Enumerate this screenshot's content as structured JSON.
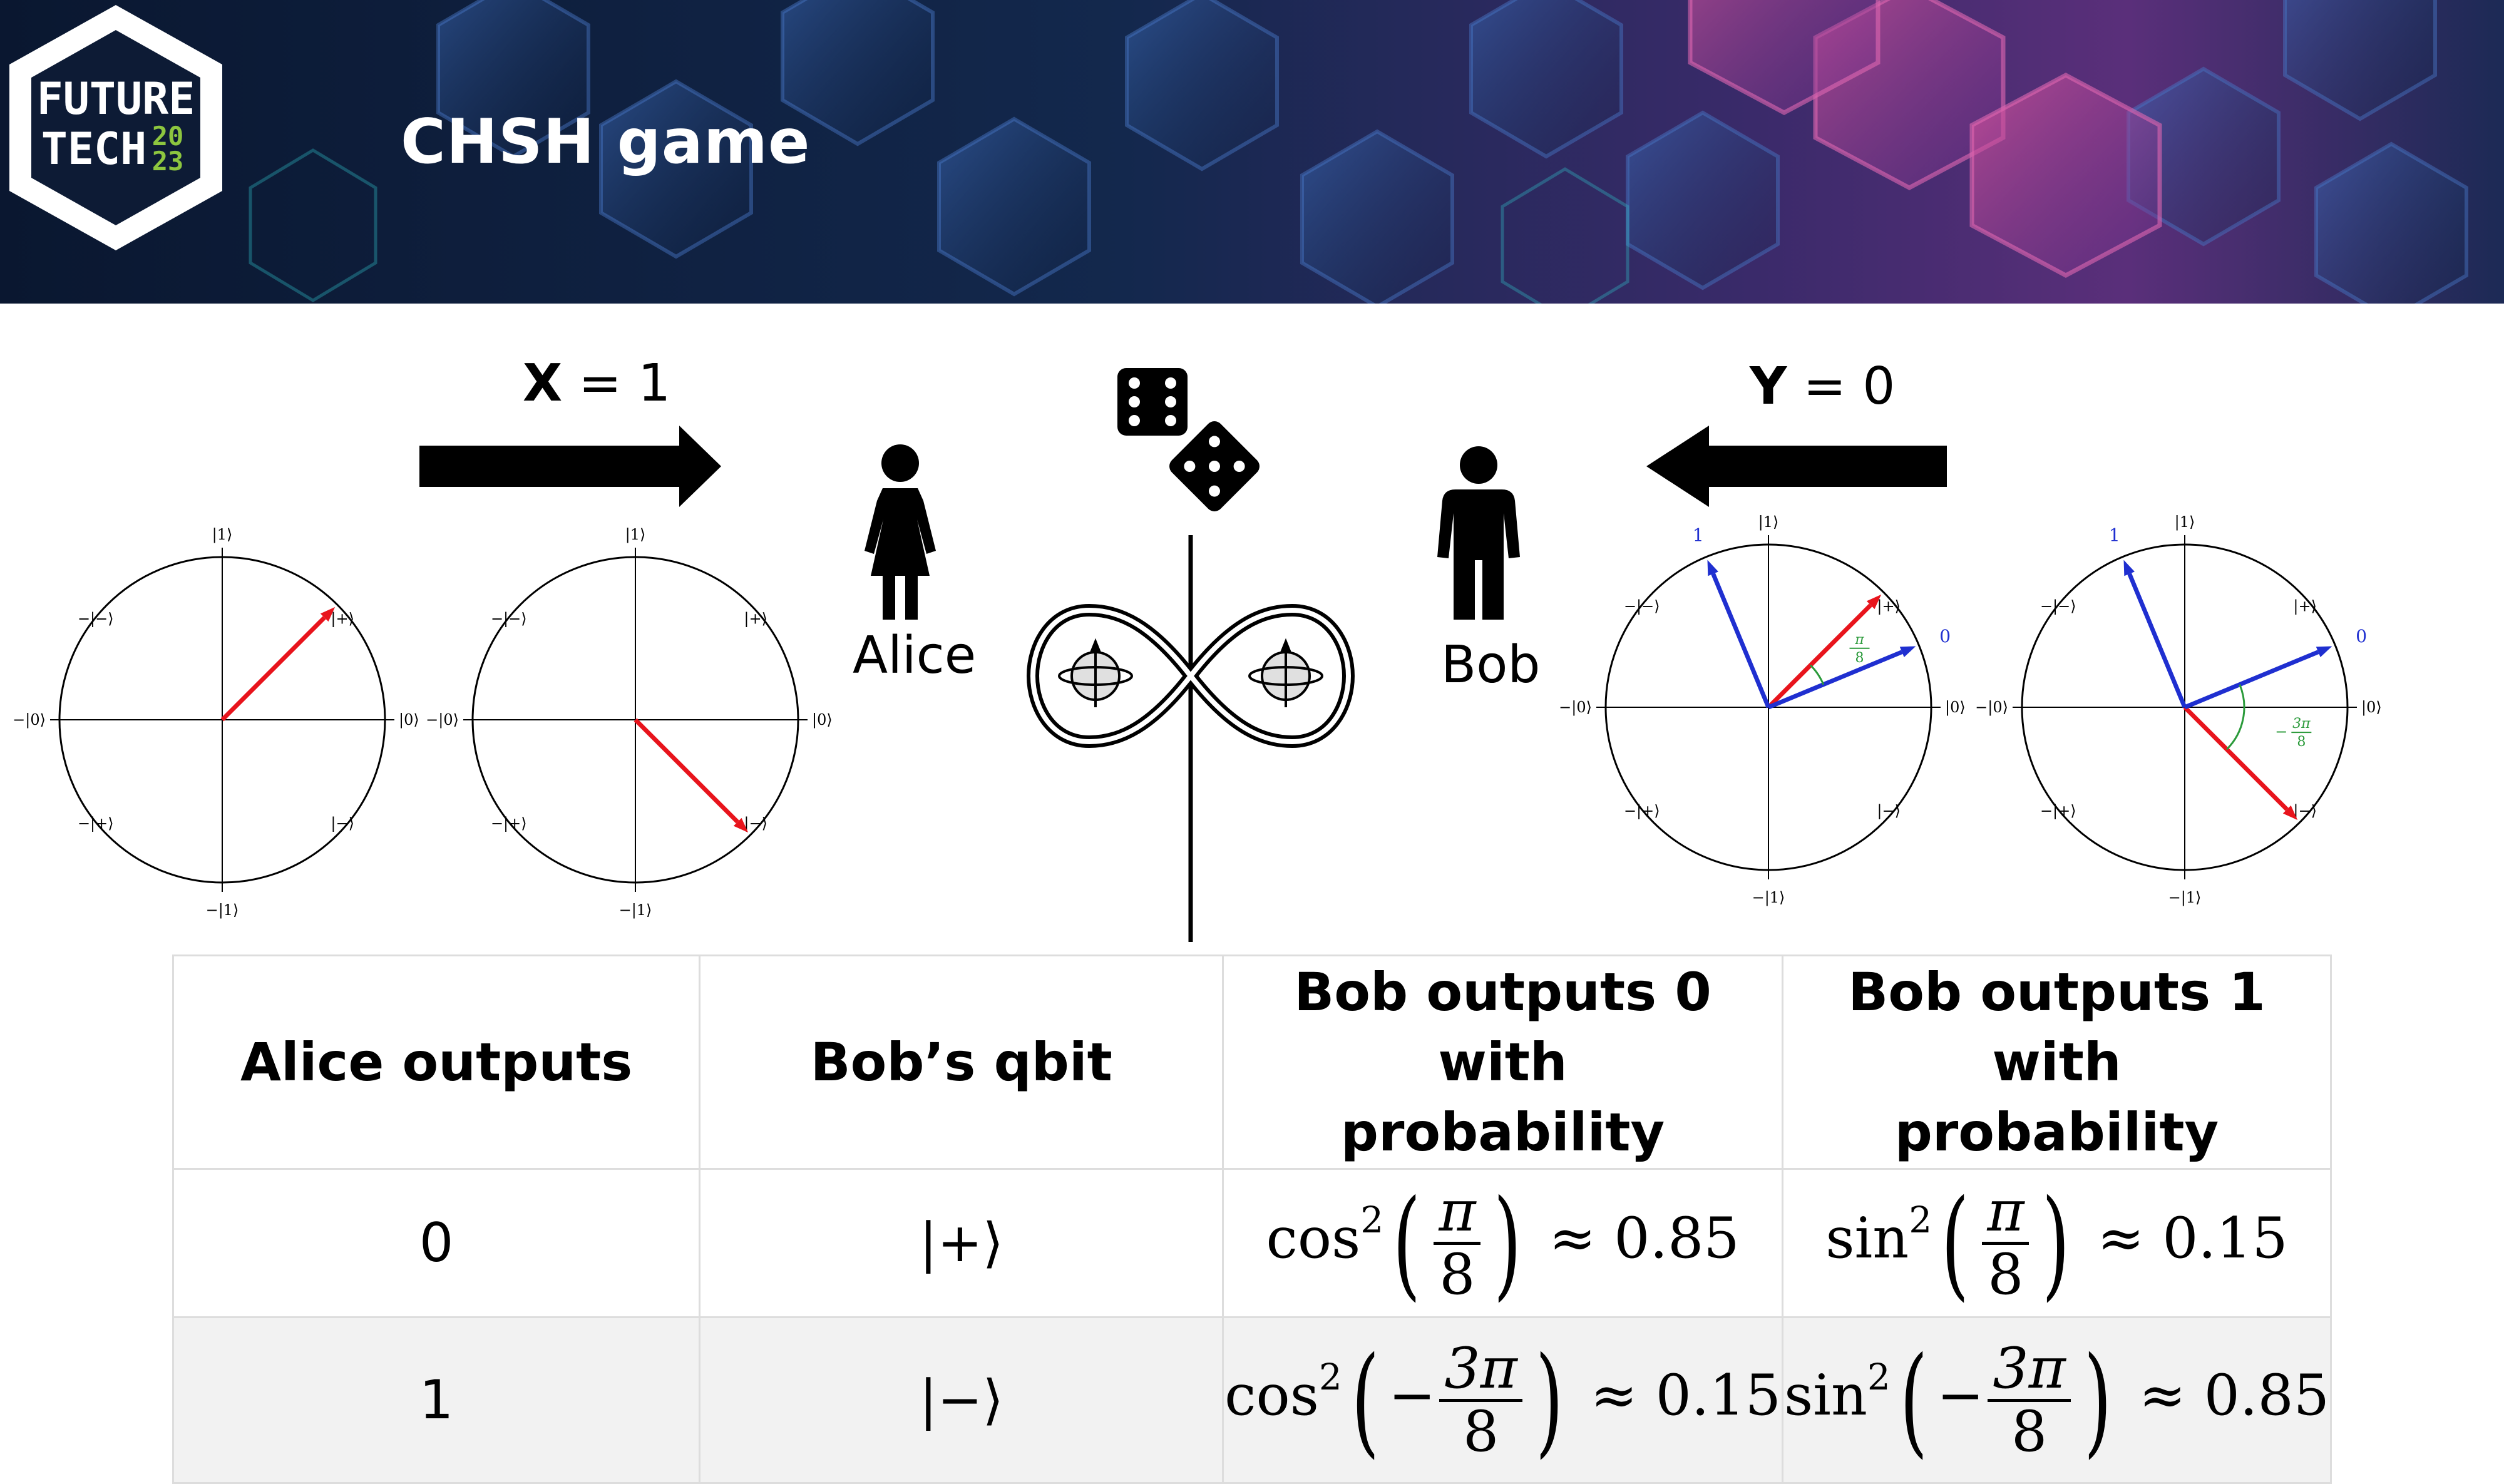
{
  "header": {
    "logo": {
      "line1": "FUTURE",
      "line2": "TECH",
      "year_top": "20",
      "year_bottom": "23",
      "accent": "#8dc63f"
    },
    "title": "CHSH game",
    "colors": {
      "bg_dark": "#0b1a33",
      "hex_blue": "#2a5fa8",
      "hex_magenta": "#c63c9e",
      "hex_cyan": "#1f8fa0"
    }
  },
  "diagram": {
    "alice_question": {
      "bold": "X",
      "rest": " = 1"
    },
    "bob_question": {
      "bold": "Y",
      "rest": " = 0"
    },
    "alice_label": "Alice",
    "bob_label": "Bob",
    "icons": [
      "right-arrow-icon",
      "left-arrow-icon",
      "woman-icon",
      "man-icon",
      "dice-icon",
      "entangled-pair-icon"
    ]
  },
  "plots": {
    "axis_labels": {
      "top": "|1⟩",
      "bottom": "−|1⟩",
      "right": "|0⟩",
      "left": "−|0⟩",
      "ne": "|+⟩",
      "nw": "−|−⟩",
      "se": "|−⟩",
      "sw": "−|+⟩"
    },
    "alice_plot_1": {
      "red_angle_deg": 45
    },
    "alice_plot_2": {
      "red_angle_deg": -45
    },
    "bob_plot_1": {
      "red_angle_deg": 45,
      "blue_0_deg": 22.5,
      "blue_1_deg": 112.5,
      "label_0": "0",
      "label_1": "1",
      "angle_num": "π",
      "angle_den": "8"
    },
    "bob_plot_2": {
      "red_angle_deg": -45,
      "blue_0_deg": 22.5,
      "blue_1_deg": 112.5,
      "label_0": "0",
      "label_1": "1",
      "angle_num": "3π",
      "angle_den": "8",
      "angle_sign": "−"
    },
    "colors": {
      "red": "#e8141c",
      "blue": "#1f2fd0",
      "green": "#2a9a3a"
    }
  },
  "table": {
    "headers": [
      "Alice outputs",
      "Bob’s qbit",
      "Bob outputs 0 with probability",
      "Bob outputs 1 with probability"
    ],
    "header_lines": [
      [
        "Alice outputs"
      ],
      [
        "Bob’s qbit"
      ],
      [
        "Bob outputs 0 with",
        "probability"
      ],
      [
        "Bob outputs 1 with",
        "probability"
      ]
    ],
    "rows": [
      {
        "alice": "0",
        "qbit": "|+⟩",
        "p0": {
          "fn": "cos",
          "exp": "2",
          "sign": "",
          "num": "π",
          "den": "8",
          "approx": "≈ 0.85"
        },
        "p1": {
          "fn": "sin",
          "exp": "2",
          "sign": "",
          "num": "π",
          "den": "8",
          "approx": "≈ 0.15"
        }
      },
      {
        "alice": "1",
        "qbit": "|−⟩",
        "p0": {
          "fn": "cos",
          "exp": "2",
          "sign": "−",
          "num": "3π",
          "den": "8",
          "approx": "≈ 0.15"
        },
        "p1": {
          "fn": "sin",
          "exp": "2",
          "sign": "−",
          "num": "3π",
          "den": "8",
          "approx": "≈ 0.85"
        }
      }
    ]
  }
}
